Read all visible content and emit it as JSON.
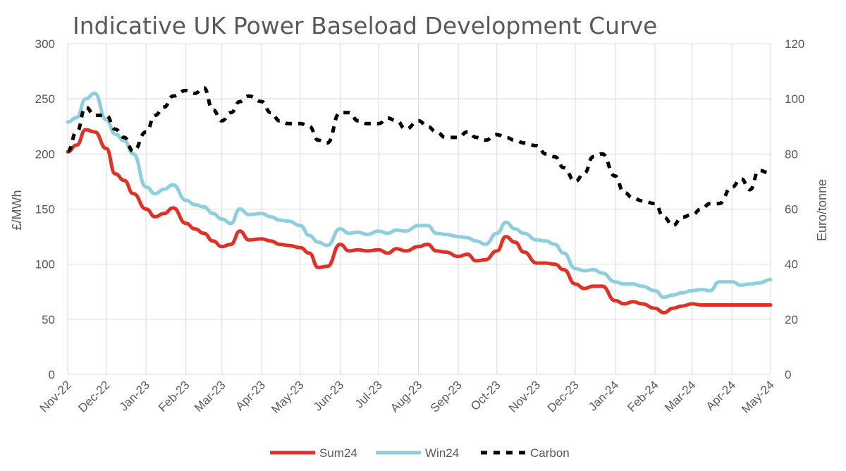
{
  "chart_data": {
    "type": "line",
    "title": "Indicative UK Power Baseload Development Curve",
    "ylabel_left": "£/MWh",
    "ylabel_right": "Euro/tonne",
    "ylim_left": [
      0,
      300
    ],
    "ylim_right": [
      0,
      120
    ],
    "yticks_left": [
      "0",
      "50",
      "100",
      "150",
      "200",
      "250",
      "300"
    ],
    "yticks_right": [
      "0",
      "20",
      "40",
      "60",
      "80",
      "100",
      "120"
    ],
    "grid": true,
    "legend_position": "bottom",
    "x_ticks": [
      "Nov-22",
      "Dec-22",
      "Jan-23",
      "Feb-23",
      "Mar-23",
      "Apr-23",
      "May-23",
      "Jun-23",
      "Jul-23",
      "Aug-23",
      "Sep-23",
      "Oct-23",
      "Nov-23",
      "Dec-23",
      "Jan-24",
      "Feb-24",
      "Mar-24",
      "Apr-24",
      "May-24"
    ],
    "x_dates": [
      "2022-11-01",
      "2022-11-08",
      "2022-11-15",
      "2022-11-22",
      "2022-12-01",
      "2022-12-08",
      "2022-12-15",
      "2022-12-22",
      "2023-01-01",
      "2023-01-08",
      "2023-01-15",
      "2023-01-22",
      "2023-02-01",
      "2023-02-08",
      "2023-02-15",
      "2023-02-22",
      "2023-03-01",
      "2023-03-08",
      "2023-03-15",
      "2023-03-22",
      "2023-04-01",
      "2023-04-08",
      "2023-04-15",
      "2023-04-22",
      "2023-05-01",
      "2023-05-08",
      "2023-05-15",
      "2023-05-22",
      "2023-06-01",
      "2023-06-08",
      "2023-06-15",
      "2023-06-22",
      "2023-07-01",
      "2023-07-08",
      "2023-07-15",
      "2023-07-22",
      "2023-08-01",
      "2023-08-08",
      "2023-08-15",
      "2023-08-22",
      "2023-09-01",
      "2023-09-08",
      "2023-09-15",
      "2023-09-22",
      "2023-10-01",
      "2023-10-08",
      "2023-10-15",
      "2023-10-22",
      "2023-11-01",
      "2023-11-08",
      "2023-11-15",
      "2023-11-22",
      "2023-12-01",
      "2023-12-08",
      "2023-12-15",
      "2023-12-22",
      "2024-01-01",
      "2024-01-08",
      "2024-01-15",
      "2024-01-22",
      "2024-02-01",
      "2024-02-08",
      "2024-02-15",
      "2024-02-22",
      "2024-03-01",
      "2024-03-08",
      "2024-03-15",
      "2024-03-22",
      "2024-04-01",
      "2024-04-08",
      "2024-04-15",
      "2024-04-22",
      "2024-05-01"
    ],
    "series": [
      {
        "name": "Sum24",
        "axis": "left",
        "color": "#e03127",
        "style": "solid",
        "values": [
          202,
          208,
          222,
          220,
          205,
          182,
          176,
          164,
          150,
          143,
          146,
          151,
          137,
          132,
          128,
          121,
          116,
          118,
          130,
          122,
          123,
          121,
          118,
          117,
          115,
          110,
          97,
          98,
          118,
          112,
          113,
          112,
          113,
          110,
          114,
          112,
          116,
          118,
          112,
          111,
          107,
          109,
          103,
          104,
          112,
          125,
          120,
          111,
          101,
          101,
          100,
          95,
          82,
          78,
          80,
          80,
          67,
          64,
          66,
          64,
          60,
          56,
          60,
          62,
          64,
          63,
          63,
          63,
          63,
          63,
          63,
          63,
          63
        ]
      },
      {
        "name": "Win24",
        "axis": "left",
        "color": "#8ecfdd",
        "style": "solid",
        "values": [
          229,
          233,
          250,
          255,
          231,
          218,
          212,
          200,
          170,
          164,
          168,
          172,
          158,
          154,
          152,
          146,
          141,
          137,
          150,
          145,
          146,
          143,
          140,
          139,
          135,
          126,
          120,
          117,
          132,
          128,
          129,
          127,
          130,
          128,
          131,
          130,
          135,
          135,
          128,
          127,
          125,
          124,
          121,
          118,
          128,
          138,
          132,
          128,
          122,
          121,
          118,
          110,
          96,
          94,
          95,
          92,
          84,
          82,
          82,
          80,
          76,
          70,
          72,
          74,
          76,
          77,
          76,
          84,
          84,
          81,
          82,
          83,
          86
        ]
      },
      {
        "name": "Carbon",
        "axis": "right",
        "color": "#000000",
        "style": "dashed",
        "values": [
          81,
          88,
          97,
          94,
          94,
          89,
          86,
          81,
          88,
          94,
          97,
          101,
          103,
          102,
          104,
          96,
          92,
          95,
          99,
          101,
          99,
          95,
          92,
          91,
          91,
          90,
          85,
          84,
          95,
          95,
          92,
          91,
          91,
          93,
          92,
          89,
          92,
          90,
          88,
          86,
          86,
          88,
          86,
          85,
          87,
          86,
          85,
          84,
          83,
          80,
          79,
          75,
          70,
          73,
          79,
          80,
          72,
          66,
          64,
          63,
          62,
          57,
          54,
          57,
          58,
          60,
          62,
          62,
          68,
          71,
          67,
          74,
          73
        ]
      }
    ]
  }
}
